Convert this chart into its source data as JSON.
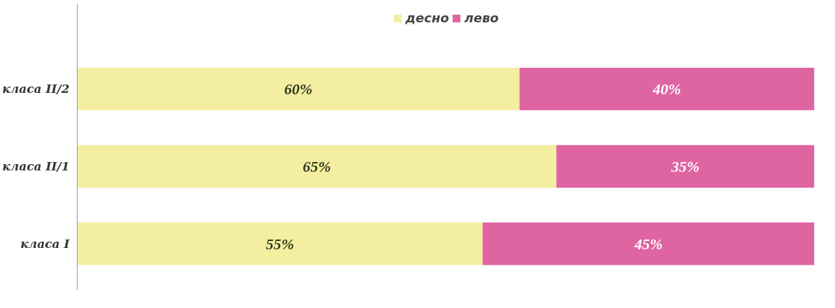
{
  "chart_data": {
    "type": "bar",
    "orientation": "horizontal",
    "stacked": true,
    "legend": "top",
    "grid": false,
    "categories": [
      "класа II/2",
      "класа II/1",
      "класа I"
    ],
    "series": [
      {
        "name": "десно",
        "color": "#f3eea0",
        "values": [
          60,
          65,
          55
        ],
        "value_labels": [
          "60%",
          "65%",
          "55%"
        ]
      },
      {
        "name": "лево",
        "color": "#df64a2",
        "values": [
          40,
          35,
          45
        ],
        "value_labels": [
          "40%",
          "35%",
          "45%"
        ]
      }
    ]
  }
}
